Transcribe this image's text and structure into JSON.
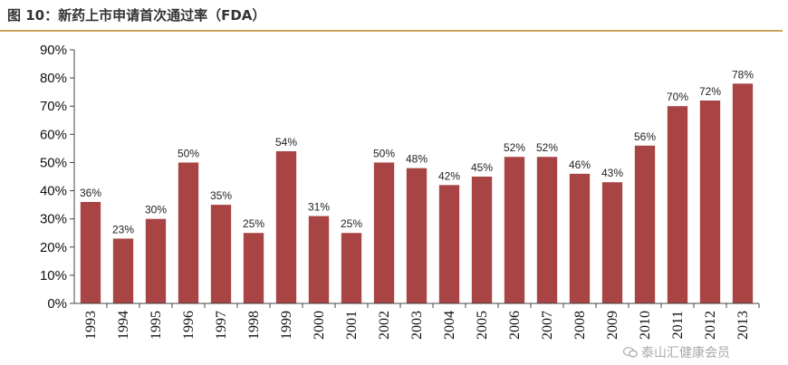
{
  "figure": {
    "title": "图 10：新药上市申请首次通过率（FDA）"
  },
  "chart_data": {
    "type": "bar",
    "title": "",
    "xlabel": "",
    "ylabel": "",
    "categories": [
      "1993",
      "1994",
      "1995",
      "1996",
      "1997",
      "1998",
      "1999",
      "2000",
      "2001",
      "2002",
      "2003",
      "2004",
      "2005",
      "2006",
      "2007",
      "2008",
      "2009",
      "2010",
      "2011",
      "2012",
      "2013"
    ],
    "values": [
      36,
      23,
      30,
      50,
      35,
      25,
      54,
      31,
      25,
      50,
      48,
      42,
      45,
      52,
      52,
      46,
      43,
      56,
      70,
      72,
      78
    ],
    "value_labels": [
      "36%",
      "23%",
      "30%",
      "50%",
      "35%",
      "25%",
      "54%",
      "31%",
      "25%",
      "50%",
      "48%",
      "42%",
      "45%",
      "52%",
      "52%",
      "46%",
      "43%",
      "56%",
      "70%",
      "72%",
      "78%"
    ],
    "ylim": [
      0,
      90
    ],
    "yticks": [
      "0%",
      "10%",
      "20%",
      "30%",
      "40%",
      "50%",
      "60%",
      "70%",
      "80%",
      "90%"
    ],
    "grid": false,
    "legend": "none",
    "bar_color": "#a84443"
  },
  "watermark": {
    "text": "泰山汇健康会员",
    "icon": "wechat-icon"
  }
}
